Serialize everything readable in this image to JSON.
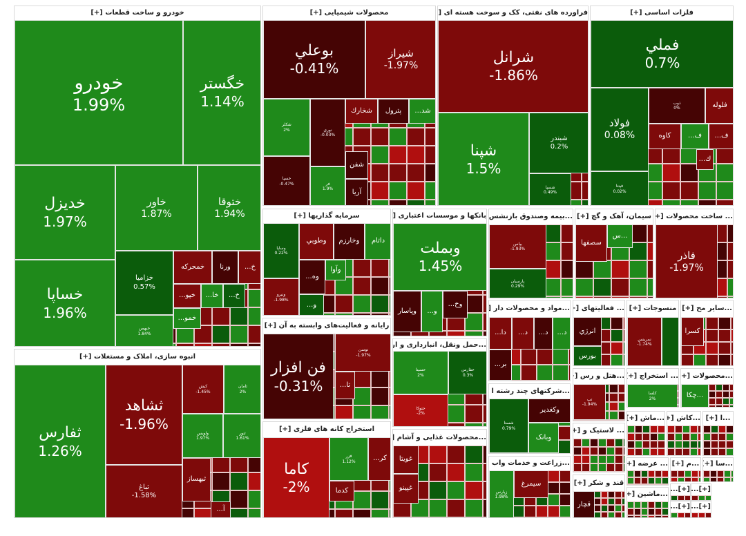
{
  "palette": {
    "g": "#1f8a1b",
    "dg": "#0b5c0b",
    "r": "#7e0a0a",
    "dr": "#450404",
    "br": "#b00f0f"
  },
  "sectors": [
    {
      "title": "خودرو و ساخت قطعات [+]",
      "tiles": [
        {
          "name": "خودرو",
          "pct": "1.99%",
          "c": "g"
        },
        {
          "name": "خگستر",
          "pct": "1.14%",
          "c": "g"
        },
        {
          "name": "خديزل",
          "pct": "1.97%",
          "c": "g"
        },
        {
          "name": "خاور",
          "pct": "1.87%",
          "c": "g"
        },
        {
          "name": "ختوقا",
          "pct": "1.94%",
          "c": "g"
        },
        {
          "name": "خساپا",
          "pct": "1.96%",
          "c": "g"
        },
        {
          "name": "خزاميا",
          "pct": "0.57%",
          "c": "dg"
        },
        {
          "name": "خبهمن",
          "pct": "1.84%",
          "c": "g"
        },
        {
          "name": "خمحرکه",
          "pct": "",
          "c": "r"
        },
        {
          "name": "ورنا",
          "pct": "",
          "c": "dr"
        },
        {
          "name": "خ...",
          "pct": "",
          "c": "r"
        },
        {
          "name": "خپو...",
          "pct": "",
          "c": "r"
        },
        {
          "name": "خا...",
          "pct": "",
          "c": "g"
        },
        {
          "name": "خ...",
          "pct": "",
          "c": "dg"
        },
        {
          "name": "خمو...",
          "pct": "",
          "c": "g"
        }
      ]
    },
    {
      "title": "انبوه سازی، املاک و مستغلات [+]",
      "tiles": [
        {
          "name": "ثفارس",
          "pct": "1.26%",
          "c": "g"
        },
        {
          "name": "ثشاهد",
          "pct": "-1.96%",
          "c": "r"
        },
        {
          "name": "ثباغ",
          "pct": "-1.58%",
          "c": "r"
        },
        {
          "name": "کیش",
          "pct": "-1.45%",
          "c": "r"
        },
        {
          "name": "ثامان",
          "pct": "2%",
          "c": "g"
        },
        {
          "name": "ولویس",
          "pct": "1.97%",
          "c": "g"
        },
        {
          "name": "ثنور",
          "pct": "1.61%",
          "c": "g"
        },
        {
          "name": "ثبهساز",
          "pct": "",
          "c": "r"
        },
        {
          "name": "آ...",
          "pct": "",
          "c": "r"
        }
      ]
    },
    {
      "title": "محصولات شیمیایی [+]",
      "tiles": [
        {
          "name": "بوعلي",
          "pct": "-0.41%",
          "c": "dr"
        },
        {
          "name": "شيراز",
          "pct": "-1.97%",
          "c": "r"
        },
        {
          "name": "شکلر",
          "pct": "2%",
          "c": "g"
        },
        {
          "name": "نوري",
          "pct": "-0.03%",
          "c": "dr"
        },
        {
          "name": "شخارك",
          "pct": "",
          "c": "r"
        },
        {
          "name": "پترول",
          "pct": "",
          "c": "dr"
        },
        {
          "name": "شد...",
          "pct": "",
          "c": "g"
        },
        {
          "name": "خسپا",
          "pct": "-0.47%",
          "c": "dr"
        },
        {
          "name": "فر",
          "pct": "1.9%",
          "c": "g"
        },
        {
          "name": "شفن",
          "pct": "",
          "c": "dr"
        },
        {
          "name": "آريا",
          "pct": "",
          "c": "dr"
        }
      ]
    },
    {
      "title": "فراورده های نفتی، کک و سوخت هسته ای [+]",
      "tiles": [
        {
          "name": "شرانل",
          "pct": "-1.86%",
          "c": "r"
        },
        {
          "name": "شپنا",
          "pct": "1.5%",
          "c": "g"
        },
        {
          "name": "شبندر",
          "pct": "0.2%",
          "c": "dg"
        },
        {
          "name": "شسپا",
          "pct": "0.49%",
          "c": "dg"
        }
      ]
    },
    {
      "title": "فلزات اساسی [+]",
      "tiles": [
        {
          "name": "فملي",
          "pct": "0.7%",
          "c": "dg"
        },
        {
          "name": "فولاد",
          "pct": "0.08%",
          "c": "dg"
        },
        {
          "name": "ذوب",
          "pct": "0%",
          "c": "dr"
        },
        {
          "name": "فلوله",
          "pct": "",
          "c": "r"
        },
        {
          "name": "کاوه",
          "pct": "",
          "c": "r"
        },
        {
          "name": "ف...",
          "pct": "",
          "c": "g"
        },
        {
          "name": "ف...",
          "pct": "",
          "c": "r"
        },
        {
          "name": "ك...",
          "pct": "",
          "c": "r"
        },
        {
          "name": "فپنتا",
          "pct": "0.02%",
          "c": "dg"
        }
      ]
    },
    {
      "title": "سرمایه گذاریها [+]",
      "tiles": [
        {
          "name": "وساپا",
          "pct": "0.22%",
          "c": "dg"
        },
        {
          "name": "وطوبي",
          "pct": "",
          "c": "r"
        },
        {
          "name": "وخارزم",
          "pct": "",
          "c": "dr"
        },
        {
          "name": "داتام",
          "pct": "",
          "c": "g"
        },
        {
          "name": "وه...",
          "pct": "",
          "c": "dr"
        },
        {
          "name": "وآوا",
          "pct": "",
          "c": "g"
        },
        {
          "name": "ونیرو",
          "pct": "-1.98%",
          "c": "r"
        },
        {
          "name": "و...",
          "pct": "",
          "c": "dg"
        }
      ]
    },
    {
      "title": "رایانه و فعالیت‌های وابسته به آن [+]",
      "tiles": [
        {
          "name": "فن افزار",
          "pct": "-0.31%",
          "c": "dr"
        },
        {
          "name": "توسن",
          "pct": "-1.97%",
          "c": "r"
        },
        {
          "name": "تا...",
          "pct": "",
          "c": "r"
        }
      ]
    },
    {
      "title": "استخراج کانه های فلزی [+]",
      "tiles": [
        {
          "name": "کاما",
          "pct": "-2%",
          "c": "br"
        },
        {
          "name": "فزر",
          "pct": "1.12%",
          "c": "g"
        },
        {
          "name": "کر...",
          "pct": "",
          "c": "r"
        },
        {
          "name": "کدما",
          "pct": "",
          "c": "r"
        }
      ]
    },
    {
      "title": "بانکها و موسسات اعتباری [+]",
      "tiles": [
        {
          "name": "وبملت",
          "pct": "1.45%",
          "c": "g"
        },
        {
          "name": "وپاسار",
          "pct": "",
          "c": "dr"
        },
        {
          "name": "و...",
          "pct": "",
          "c": "g"
        },
        {
          "name": "وخ...",
          "pct": "",
          "c": "dr"
        }
      ]
    },
    {
      "title": "...حمل ونقل، انبارداری و ار [+]",
      "tiles": [
        {
          "name": "حسينا",
          "pct": "2%",
          "c": "g"
        },
        {
          "name": "حفارس",
          "pct": "0.3%",
          "c": "dg"
        },
        {
          "name": "حتوکا",
          "pct": "-2%",
          "c": "br"
        }
      ]
    },
    {
      "title": "...محصولات غذایی و آشام [+]",
      "tiles": [
        {
          "name": "غويتا",
          "pct": "",
          "c": "r"
        },
        {
          "name": "غپينو",
          "pct": "",
          "c": "r"
        }
      ]
    },
    {
      "title": "...بیمه وصندوق بازنشس [+]",
      "tiles": [
        {
          "name": "بپاس",
          "pct": "-1.93%",
          "c": "r"
        },
        {
          "name": "پارسیان",
          "pct": "0.29%",
          "c": "dg"
        }
      ]
    },
    {
      "title": "سیمان، آهک و گچ [+]",
      "tiles": [
        {
          "name": "سصفها",
          "pct": "",
          "c": "r"
        },
        {
          "name": "...س",
          "pct": "",
          "c": "g"
        }
      ]
    },
    {
      "title": "... ساخت محصولات [+]",
      "tiles": [
        {
          "name": "فاذر",
          "pct": "-1.97%",
          "c": "r"
        }
      ]
    },
    {
      "title": "...مواد و محصولات دار [+]",
      "tiles": [
        {
          "name": "دا...",
          "pct": "",
          "c": "r"
        },
        {
          "name": "د...",
          "pct": "",
          "c": "r"
        },
        {
          "name": "د...",
          "pct": "",
          "c": "dr"
        },
        {
          "name": "د...",
          "pct": "",
          "c": "g"
        },
        {
          "name": "بر...",
          "pct": "",
          "c": "dr"
        }
      ]
    },
    {
      "title": "... فعالیتهای [+]",
      "tiles": [
        {
          "name": "انرژي",
          "pct": "",
          "c": "dr"
        },
        {
          "name": "بورس",
          "pct": "",
          "c": "dg"
        }
      ]
    },
    {
      "title": "منسوجات [+]",
      "tiles": [
        {
          "name": "نمرینس",
          "pct": "-1.74%",
          "c": "r"
        },
        {
          "name": "",
          "pct": "",
          "c": "dg"
        }
      ]
    },
    {
      "title": "...سایر مح [+]",
      "tiles": [
        {
          "name": "کسرا",
          "pct": "",
          "c": "r"
        }
      ]
    },
    {
      "title": "...شرکتهای چند رشته ا [+]",
      "tiles": [
        {
          "name": "شستا",
          "pct": "0.79%",
          "c": "dg"
        },
        {
          "name": "وکغدیر",
          "pct": "",
          "c": "dr"
        },
        {
          "name": "وبانک",
          "pct": "",
          "c": "g"
        }
      ]
    },
    {
      "title": "...هتل و رس [+]",
      "tiles": [
        {
          "name": "تپ",
          "pct": "-1.94%",
          "c": "r"
        }
      ]
    },
    {
      "title": "... استخراج [+]",
      "tiles": [
        {
          "name": "کلسا",
          "pct": "2%",
          "c": "g"
        }
      ]
    },
    {
      "title": "...محصولات [+]",
      "tiles": [
        {
          "name": "...چکا",
          "pct": "",
          "c": "g"
        }
      ]
    },
    {
      "title": "...زراعت و خدمات واب [+]",
      "tiles": [
        {
          "name": "زپارس",
          "pct": "1.98%",
          "c": "g"
        },
        {
          "name": "سیمرغ",
          "pct": "",
          "c": "r"
        }
      ]
    },
    {
      "title": "... لاستیک و [+]",
      "tiles": []
    },
    {
      "title": "قند و شکر [+]",
      "tiles": [
        {
          "name": "قچار",
          "pct": "",
          "c": "dr"
        }
      ]
    },
    {
      "title": "...ماش [+]",
      "tiles": []
    },
    {
      "title": "...کاش [+]",
      "tiles": []
    },
    {
      "title": "...ا [+]",
      "tiles": []
    },
    {
      "title": "... عرضه [+]",
      "tiles": []
    },
    {
      "title": "...م [+]",
      "tiles": []
    },
    {
      "title": "...سا [+]",
      "tiles": []
    },
    {
      "title": "...ماشین [+]",
      "tiles": []
    },
    {
      "title": "[+]...",
      "tiles": []
    },
    {
      "title": "[+]...",
      "tiles": []
    },
    {
      "title": "[+]...",
      "tiles": []
    },
    {
      "title": "[+]...",
      "tiles": []
    }
  ]
}
